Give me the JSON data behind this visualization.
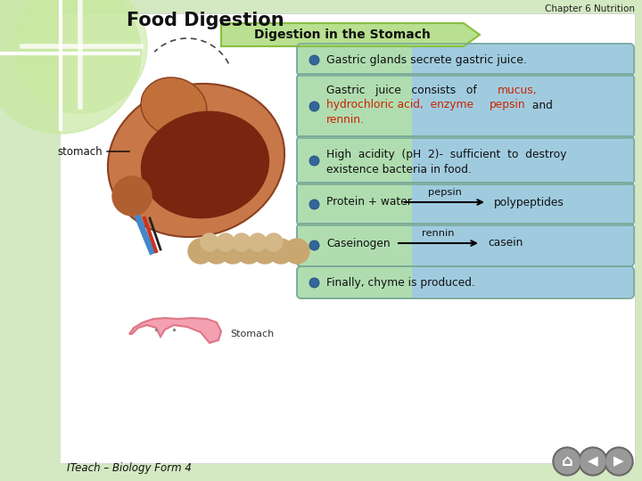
{
  "bg_color": "#d4e8c2",
  "content_bg": "#ffffff",
  "header_bg": "#e8eee0",
  "title_main": "Food Digestion",
  "title_chapter": "Chapter 6 Nutrition",
  "subtitle": "Digestion in the Stomach",
  "subtitle_bg": "#b8e090",
  "subtitle_border": "#88c040",
  "box_bg_left": "#c8eec8",
  "box_bg_right": "#a8cce8",
  "box_border": "#88aacc",
  "bullet_color": "#336699",
  "bullet1": "Gastric glands secrete gastric juice.",
  "bullet3_line1": "High  acidity  (pH  2)-  sufficient  to  destroy",
  "bullet3_line2": "existence bacteria in food.",
  "bullet4_left": "Protein + water",
  "bullet4_label": "pepsin",
  "bullet4_right": "polypeptides",
  "bullet5_left": "Caseinogen",
  "bullet5_label": "rennin",
  "bullet5_right": "casein",
  "bullet6": "Finally, chyme is produced.",
  "footer": "ITeach – Biology Form 4",
  "stomach_label": "stomach",
  "stomach_small_label": "Stomach",
  "circle_color": "#c8e8a0",
  "nav_bg": "#888888",
  "nav_border": "#666666"
}
